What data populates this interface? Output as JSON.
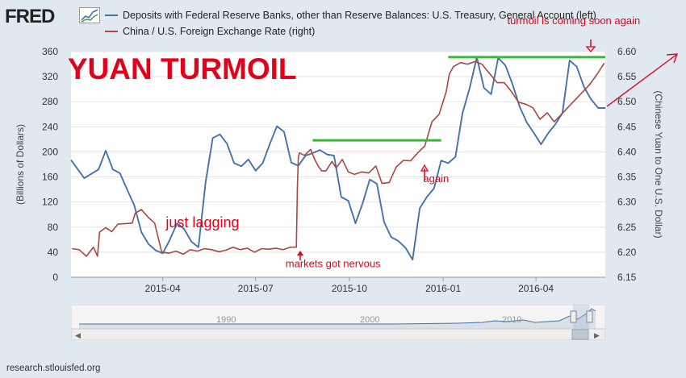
{
  "header": {
    "logo_text": "FRED",
    "legend": [
      {
        "label": "Deposits with Federal Reserve Banks, other than Reserve Balances: U.S. Treasury, General Account (left)",
        "color": "#4572a7"
      },
      {
        "label": "China / U.S. Foreign Exchange Rate (right)",
        "color": "#aa4643"
      }
    ]
  },
  "navigator": {
    "year_labels": [
      "1990",
      "2000",
      "2010"
    ]
  },
  "footer": {
    "source": "research.stlouisfed.org"
  },
  "chart_data": {
    "type": "line",
    "title": "",
    "xlabel": "",
    "ylabel": "(Billions of Dollars)",
    "y2label": "(Chinese Yuan to One U.S. Dollar)",
    "x_range": [
      "2015-01-01",
      "2016-06-08"
    ],
    "x_ticks": [
      {
        "date": "2015-04-01",
        "label": "2015-04"
      },
      {
        "date": "2015-07-01",
        "label": "2015-07"
      },
      {
        "date": "2015-10-01",
        "label": "2015-10"
      },
      {
        "date": "2016-01-01",
        "label": "2016-01"
      },
      {
        "date": "2016-04-01",
        "label": "2016-04"
      }
    ],
    "ylim": [
      0,
      360
    ],
    "y_ticks": [
      0,
      40,
      80,
      120,
      160,
      200,
      240,
      280,
      320,
      360
    ],
    "y2lim": [
      6.15,
      6.6
    ],
    "y2_ticks": [
      "6.15",
      "6.20",
      "6.25",
      "6.30",
      "6.35",
      "6.40",
      "6.45",
      "6.50",
      "6.55",
      "6.60"
    ],
    "grid": "horizontal",
    "series": [
      {
        "name": "Deposits with Federal Reserve Banks, other than Reserve Balances: U.S. Treasury, General Account (left)",
        "axis": "left",
        "color": "#4572a7",
        "points": [
          [
            "2015-01-01",
            187
          ],
          [
            "2015-01-14",
            158
          ],
          [
            "2015-01-28",
            172
          ],
          [
            "2015-02-04",
            202
          ],
          [
            "2015-02-11",
            172
          ],
          [
            "2015-02-18",
            166
          ],
          [
            "2015-02-25",
            140
          ],
          [
            "2015-03-04",
            115
          ],
          [
            "2015-03-11",
            72
          ],
          [
            "2015-03-18",
            53
          ],
          [
            "2015-03-25",
            43
          ],
          [
            "2015-04-01",
            38
          ],
          [
            "2015-04-08",
            60
          ],
          [
            "2015-04-15",
            86
          ],
          [
            "2015-04-22",
            77
          ],
          [
            "2015-04-29",
            57
          ],
          [
            "2015-05-06",
            48
          ],
          [
            "2015-05-13",
            152
          ],
          [
            "2015-05-20",
            222
          ],
          [
            "2015-05-27",
            228
          ],
          [
            "2015-06-03",
            213
          ],
          [
            "2015-06-10",
            182
          ],
          [
            "2015-06-17",
            177
          ],
          [
            "2015-06-24",
            188
          ],
          [
            "2015-07-01",
            170
          ],
          [
            "2015-07-08",
            182
          ],
          [
            "2015-07-15",
            213
          ],
          [
            "2015-07-22",
            241
          ],
          [
            "2015-07-29",
            232
          ],
          [
            "2015-08-05",
            183
          ],
          [
            "2015-08-12",
            178
          ],
          [
            "2015-08-19",
            194
          ],
          [
            "2015-08-26",
            198
          ],
          [
            "2015-09-02",
            203
          ],
          [
            "2015-09-09",
            196
          ],
          [
            "2015-09-16",
            194
          ],
          [
            "2015-09-23",
            128
          ],
          [
            "2015-09-30",
            122
          ],
          [
            "2015-10-07",
            86
          ],
          [
            "2015-10-14",
            118
          ],
          [
            "2015-10-21",
            156
          ],
          [
            "2015-10-28",
            149
          ],
          [
            "2015-11-04",
            88
          ],
          [
            "2015-11-11",
            64
          ],
          [
            "2015-11-18",
            58
          ],
          [
            "2015-11-25",
            47
          ],
          [
            "2015-12-02",
            28
          ],
          [
            "2015-12-09",
            110
          ],
          [
            "2015-12-16",
            128
          ],
          [
            "2015-12-23",
            142
          ],
          [
            "2015-12-30",
            186
          ],
          [
            "2016-01-06",
            182
          ],
          [
            "2016-01-13",
            192
          ],
          [
            "2016-01-20",
            262
          ],
          [
            "2016-01-27",
            302
          ],
          [
            "2016-02-03",
            351
          ],
          [
            "2016-02-10",
            302
          ],
          [
            "2016-02-17",
            292
          ],
          [
            "2016-02-24",
            350
          ],
          [
            "2016-03-02",
            338
          ],
          [
            "2016-03-09",
            308
          ],
          [
            "2016-03-16",
            272
          ],
          [
            "2016-03-23",
            247
          ],
          [
            "2016-03-30",
            230
          ],
          [
            "2016-04-06",
            212
          ],
          [
            "2016-04-13",
            230
          ],
          [
            "2016-04-20",
            244
          ],
          [
            "2016-04-27",
            262
          ],
          [
            "2016-05-04",
            346
          ],
          [
            "2016-05-11",
            336
          ],
          [
            "2016-05-18",
            304
          ],
          [
            "2016-05-25",
            284
          ],
          [
            "2016-06-01",
            270
          ],
          [
            "2016-06-08",
            270
          ]
        ]
      },
      {
        "name": "China / U.S. Foreign Exchange Rate (right)",
        "axis": "right",
        "color": "#aa4643",
        "points": [
          [
            "2015-01-02",
            6.207
          ],
          [
            "2015-01-09",
            6.205
          ],
          [
            "2015-01-16",
            6.192
          ],
          [
            "2015-01-23",
            6.21
          ],
          [
            "2015-01-27",
            6.192
          ],
          [
            "2015-01-29",
            6.24
          ],
          [
            "2015-02-04",
            6.249
          ],
          [
            "2015-02-10",
            6.241
          ],
          [
            "2015-02-16",
            6.256
          ],
          [
            "2015-02-24",
            6.257
          ],
          [
            "2015-03-02",
            6.258
          ],
          [
            "2015-03-05",
            6.278
          ],
          [
            "2015-03-11",
            6.285
          ],
          [
            "2015-03-18",
            6.269
          ],
          [
            "2015-03-24",
            6.258
          ],
          [
            "2015-03-31",
            6.2
          ],
          [
            "2015-04-07",
            6.198
          ],
          [
            "2015-04-14",
            6.202
          ],
          [
            "2015-04-21",
            6.196
          ],
          [
            "2015-04-28",
            6.205
          ],
          [
            "2015-05-05",
            6.202
          ],
          [
            "2015-05-12",
            6.207
          ],
          [
            "2015-05-19",
            6.205
          ],
          [
            "2015-05-26",
            6.201
          ],
          [
            "2015-06-02",
            6.204
          ],
          [
            "2015-06-09",
            6.21
          ],
          [
            "2015-06-16",
            6.205
          ],
          [
            "2015-06-23",
            6.208
          ],
          [
            "2015-06-30",
            6.2
          ],
          [
            "2015-07-07",
            6.207
          ],
          [
            "2015-07-14",
            6.206
          ],
          [
            "2015-07-21",
            6.208
          ],
          [
            "2015-07-28",
            6.205
          ],
          [
            "2015-08-04",
            6.21
          ],
          [
            "2015-08-10",
            6.21
          ],
          [
            "2015-08-11",
            6.33
          ],
          [
            "2015-08-12",
            6.39
          ],
          [
            "2015-08-13",
            6.398
          ],
          [
            "2015-08-18",
            6.393
          ],
          [
            "2015-08-24",
            6.405
          ],
          [
            "2015-08-28",
            6.385
          ],
          [
            "2015-09-01",
            6.37
          ],
          [
            "2015-09-04",
            6.362
          ],
          [
            "2015-09-08",
            6.362
          ],
          [
            "2015-09-14",
            6.381
          ],
          [
            "2015-09-18",
            6.368
          ],
          [
            "2015-09-24",
            6.385
          ],
          [
            "2015-09-30",
            6.36
          ],
          [
            "2015-10-06",
            6.355
          ],
          [
            "2015-10-13",
            6.36
          ],
          [
            "2015-10-20",
            6.358
          ],
          [
            "2015-10-27",
            6.372
          ],
          [
            "2015-11-02",
            6.337
          ],
          [
            "2015-11-09",
            6.339
          ],
          [
            "2015-11-16",
            6.37
          ],
          [
            "2015-11-23",
            6.383
          ],
          [
            "2015-11-30",
            6.382
          ],
          [
            "2015-12-07",
            6.398
          ],
          [
            "2015-12-14",
            6.412
          ],
          [
            "2015-12-21",
            6.46
          ],
          [
            "2015-12-28",
            6.475
          ],
          [
            "2016-01-04",
            6.52
          ],
          [
            "2016-01-07",
            6.555
          ],
          [
            "2016-01-11",
            6.57
          ],
          [
            "2016-01-18",
            6.578
          ],
          [
            "2016-01-25",
            6.575
          ],
          [
            "2016-02-01",
            6.58
          ],
          [
            "2016-02-08",
            6.575
          ],
          [
            "2016-02-16",
            6.555
          ],
          [
            "2016-02-23",
            6.538
          ],
          [
            "2016-03-01",
            6.538
          ],
          [
            "2016-03-08",
            6.52
          ],
          [
            "2016-03-15",
            6.499
          ],
          [
            "2016-03-22",
            6.495
          ],
          [
            "2016-03-29",
            6.488
          ],
          [
            "2016-04-05",
            6.465
          ],
          [
            "2016-04-12",
            6.478
          ],
          [
            "2016-04-19",
            6.46
          ],
          [
            "2016-04-26",
            6.475
          ],
          [
            "2016-05-03",
            6.49
          ],
          [
            "2016-05-10",
            6.505
          ],
          [
            "2016-05-17",
            6.52
          ],
          [
            "2016-05-24",
            6.535
          ],
          [
            "2016-05-31",
            6.555
          ],
          [
            "2016-06-07",
            6.577
          ]
        ]
      }
    ],
    "annotations": [
      {
        "text": "YUAN TURMOIL",
        "date": "2015-04-20",
        "y2": 6.545,
        "color": "#e3001b",
        "size": "large"
      },
      {
        "text": "just lagging",
        "date": "2015-05-10",
        "y2": 6.25,
        "color": "#e3001b",
        "size": "medium"
      },
      {
        "text": "markets got nervous",
        "date": "2015-09-15",
        "y2": 6.17,
        "color": "#e3001b",
        "size": "small"
      },
      {
        "text": "again",
        "date": "2015-12-25",
        "y2": 6.34,
        "color": "#e3001b",
        "size": "small"
      },
      {
        "text": "turmoil is coming soon again",
        "date": "2016-05-08",
        "y2": 6.655,
        "color": "#e3001b",
        "size": "small"
      }
    ],
    "resistance_lines": [
      {
        "from": "2015-08-26",
        "to": "2015-12-30",
        "y2": 6.423,
        "color": "#33bb33"
      },
      {
        "from": "2016-01-06",
        "to": "2016-06-08",
        "y2": 6.589,
        "color": "#33bb33"
      }
    ]
  }
}
